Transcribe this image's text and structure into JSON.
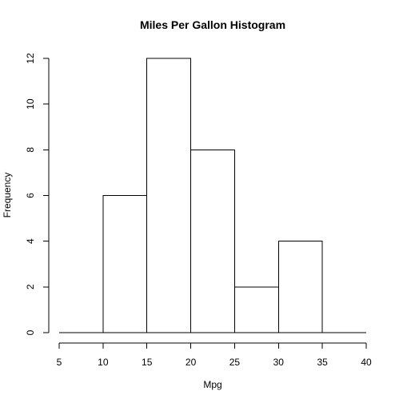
{
  "chart_data": {
    "type": "bar",
    "title": "Miles Per Gallon Histogram",
    "xlabel": "Mpg",
    "ylabel": "Frequency",
    "bins": [
      {
        "from": 5,
        "to": 10,
        "count": 0
      },
      {
        "from": 10,
        "to": 15,
        "count": 6
      },
      {
        "from": 15,
        "to": 20,
        "count": 12
      },
      {
        "from": 20,
        "to": 25,
        "count": 8
      },
      {
        "from": 25,
        "to": 30,
        "count": 2
      },
      {
        "from": 30,
        "to": 35,
        "count": 4
      },
      {
        "from": 35,
        "to": 40,
        "count": 0
      }
    ],
    "xlim": [
      5,
      40
    ],
    "ylim": [
      0,
      12
    ],
    "x_ticks": [
      5,
      10,
      15,
      20,
      25,
      30,
      35,
      40
    ],
    "y_ticks": [
      0,
      2,
      4,
      6,
      8,
      10,
      12
    ],
    "bar_fill": "#ffffff",
    "bar_stroke": "#000000",
    "grid": false,
    "legend": "none"
  }
}
